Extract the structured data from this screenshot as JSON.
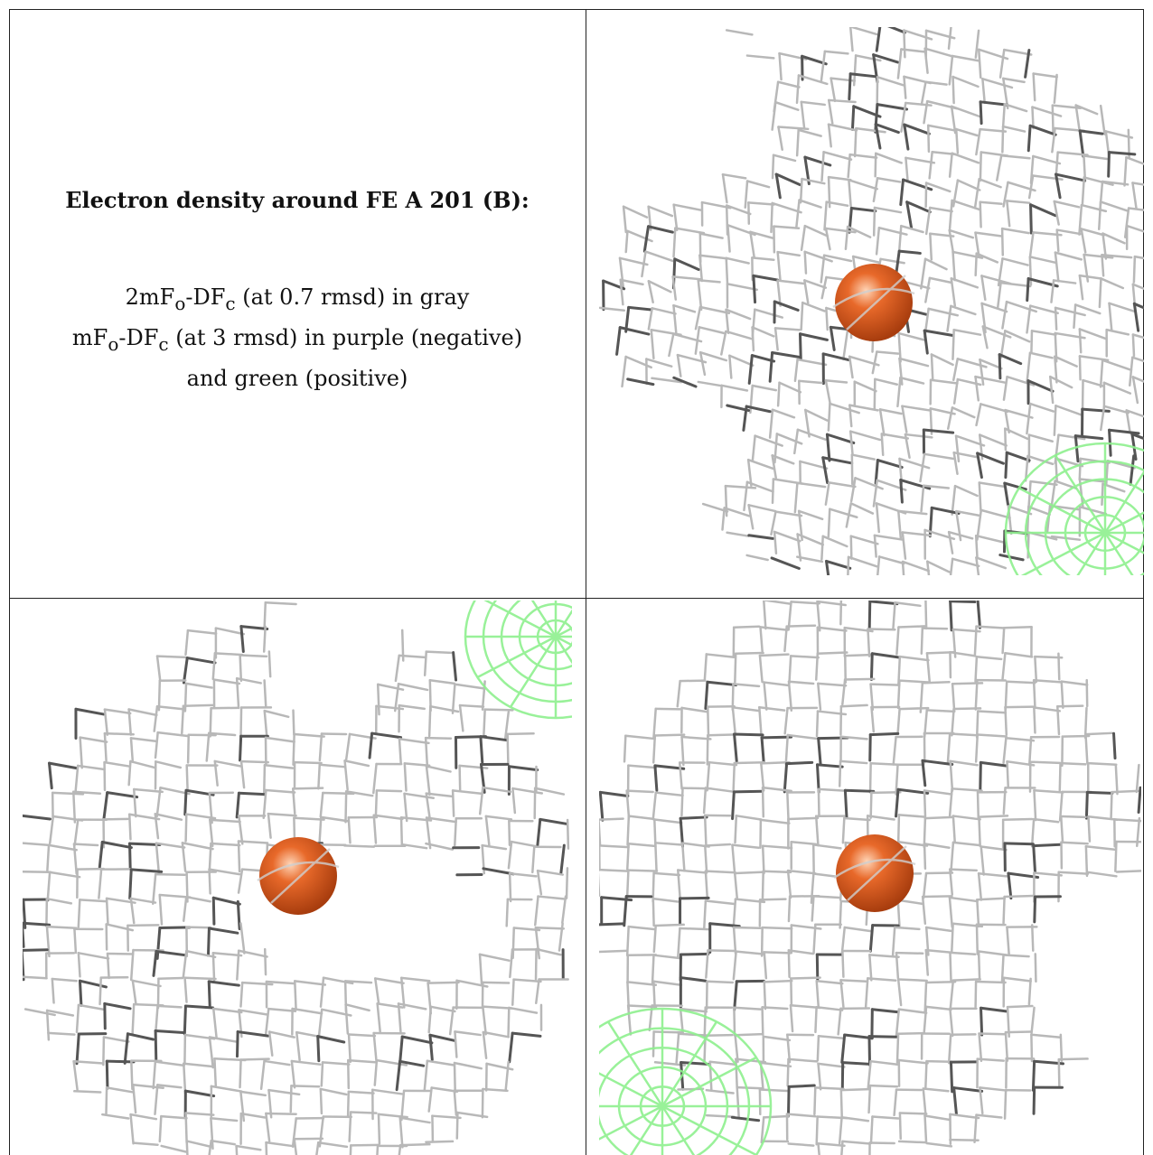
{
  "heading": {
    "title": "Electron density around FE A 201 (B):"
  },
  "legend": {
    "line1": {
      "prefix": "2mF",
      "sub1": "o",
      "mid": "-DF",
      "sub2": "c",
      "suffix": " (at 0.7 rmsd) in gray"
    },
    "line2": {
      "prefix": "mF",
      "sub1": "o",
      "mid": "-DF",
      "sub2": "c",
      "suffix": " (at 3 rmsd) in purple (negative)"
    },
    "line3": "and green (positive)"
  },
  "colors": {
    "mesh_gray": "#b8b8b8",
    "mesh_dark": "#555555",
    "mesh_green": "#8ef08e",
    "atom": "#e8692a"
  },
  "panels": [
    {
      "name": "top-right-view",
      "icon": "fe-atom-icon"
    },
    {
      "name": "bottom-left-view",
      "icon": "fe-atom-icon"
    },
    {
      "name": "bottom-right-view",
      "icon": "fe-atom-icon"
    }
  ]
}
